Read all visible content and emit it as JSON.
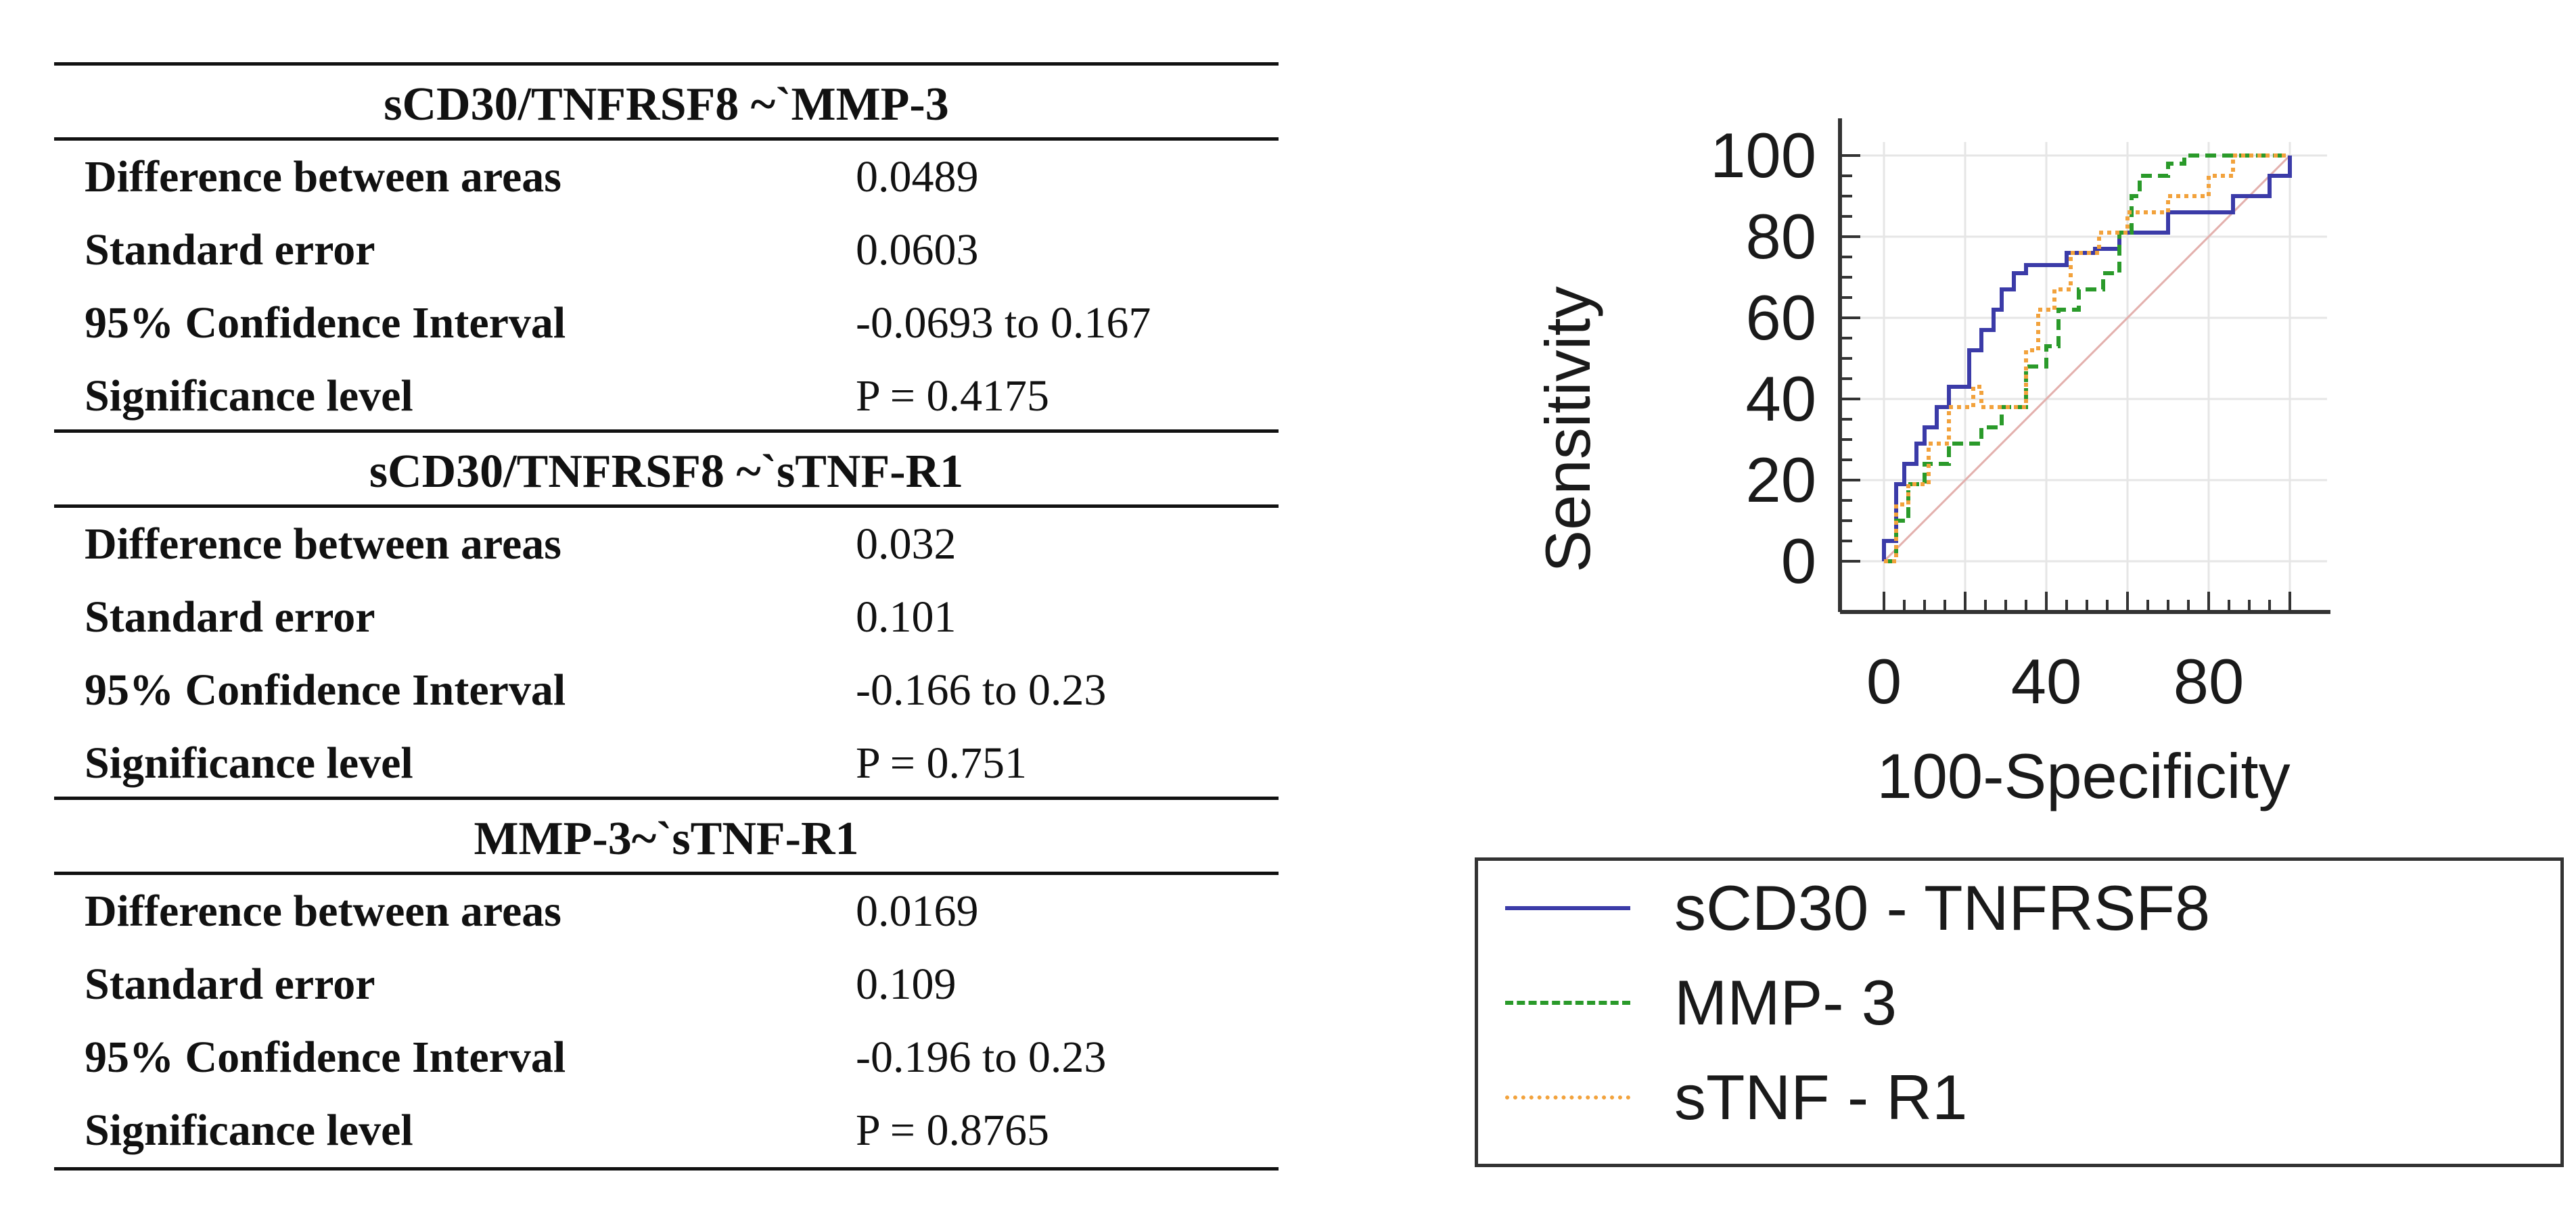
{
  "comparisons": [
    {
      "title": "sCD30/TNFRSF8 ~`MMP-3",
      "rows": [
        {
          "label": "Difference between areas",
          "value": "0.0489"
        },
        {
          "label": "Standard error",
          "value": "0.0603"
        },
        {
          "label": "95% Confidence Interval",
          "value": "-0.0693 to 0.167"
        },
        {
          "label": "Significance level",
          "value": "P = 0.4175"
        }
      ]
    },
    {
      "title": "sCD30/TNFRSF8 ~`sTNF-R1",
      "rows": [
        {
          "label": "Difference between areas",
          "value": "0.032"
        },
        {
          "label": "Standard error",
          "value": "0.101"
        },
        {
          "label": "95% Confidence Interval",
          "value": "-0.166 to 0.23"
        },
        {
          "label": "Significance level",
          "value": "P = 0.751"
        }
      ]
    },
    {
      "title": "MMP-3~`sTNF-R1",
      "rows": [
        {
          "label": "Difference between areas",
          "value": "0.0169"
        },
        {
          "label": "Standard error",
          "value": "0.109"
        },
        {
          "label": "95% Confidence Interval",
          "value": "-0.196 to 0.23"
        },
        {
          "label": "Significance level",
          "value": "P = 0.8765"
        }
      ]
    }
  ],
  "chart_data": {
    "type": "line",
    "title": "",
    "xlabel": "100-Specificity",
    "ylabel": "Sensitivity",
    "xlim": [
      0,
      100
    ],
    "ylim": [
      0,
      100
    ],
    "xticks": [
      0,
      40,
      80
    ],
    "yticks": [
      0,
      20,
      40,
      60,
      80,
      100
    ],
    "grid": true,
    "legend_position": "below",
    "reference_line": {
      "x": [
        0,
        100
      ],
      "y": [
        0,
        100
      ],
      "color": "#e3b0ad"
    },
    "series": [
      {
        "name": "sCD30 - TNFRSF8",
        "color": "#3b3ba8",
        "style": "solid",
        "x": [
          0,
          0,
          3,
          3,
          5,
          5,
          8,
          8,
          10,
          10,
          13,
          13,
          16,
          16,
          21,
          21,
          24,
          24,
          27,
          27,
          29,
          29,
          32,
          32,
          35,
          35,
          45,
          45,
          52,
          52,
          58,
          58,
          63,
          63,
          70,
          70,
          86,
          86,
          95,
          95,
          100,
          100
        ],
        "y": [
          0,
          5,
          5,
          19,
          19,
          24,
          24,
          29,
          29,
          33,
          33,
          38,
          38,
          43,
          43,
          52,
          52,
          57,
          57,
          62,
          62,
          67,
          67,
          71,
          71,
          73,
          73,
          76,
          76,
          77,
          77,
          81,
          81,
          81,
          81,
          86,
          86,
          90,
          90,
          95,
          95,
          100
        ]
      },
      {
        "name": "MMP- 3",
        "color": "#2a9a2a",
        "style": "dashed",
        "x": [
          0,
          3,
          3,
          6,
          6,
          10,
          10,
          16,
          16,
          24,
          24,
          29,
          29,
          35,
          35,
          40,
          40,
          43,
          43,
          48,
          48,
          54,
          54,
          58,
          58,
          61,
          61,
          63,
          63,
          70,
          70,
          74,
          74,
          100
        ],
        "y": [
          0,
          0,
          10,
          10,
          19,
          19,
          24,
          24,
          29,
          29,
          33,
          33,
          38,
          38,
          48,
          48,
          53,
          53,
          62,
          62,
          67,
          67,
          71,
          71,
          81,
          81,
          90,
          90,
          95,
          95,
          98,
          98,
          100,
          100
        ]
      },
      {
        "name": "sTNF - R1",
        "color": "#f2a23c",
        "style": "dotted",
        "x": [
          0,
          3,
          3,
          6,
          6,
          11,
          11,
          16,
          16,
          22,
          22,
          24,
          24,
          35,
          35,
          38,
          38,
          42,
          42,
          46,
          46,
          53,
          53,
          60,
          60,
          70,
          70,
          80,
          80,
          86,
          86,
          100
        ],
        "y": [
          0,
          0,
          14,
          14,
          19,
          19,
          29,
          29,
          38,
          38,
          43,
          43,
          38,
          38,
          52,
          52,
          62,
          62,
          67,
          67,
          76,
          76,
          81,
          81,
          86,
          86,
          90,
          90,
          95,
          95,
          100,
          100
        ]
      }
    ]
  }
}
